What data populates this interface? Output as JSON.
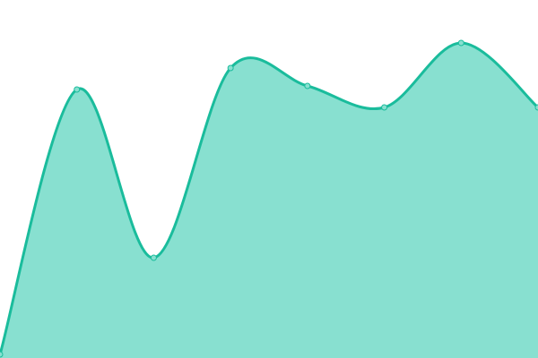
{
  "chart_data": {
    "type": "area",
    "title": "",
    "xlabel": "",
    "ylabel": "",
    "x": [
      0,
      1,
      2,
      3,
      4,
      5,
      6,
      7
    ],
    "values": [
      1,
      75,
      28,
      81,
      76,
      70,
      88,
      70
    ],
    "ylim": [
      0,
      100
    ],
    "grid": false,
    "axes_visible": false,
    "curve": "smooth",
    "colors": {
      "line": "#1abc9c",
      "fill": "#88e0d0",
      "point_fill": "#88e0d0"
    }
  }
}
